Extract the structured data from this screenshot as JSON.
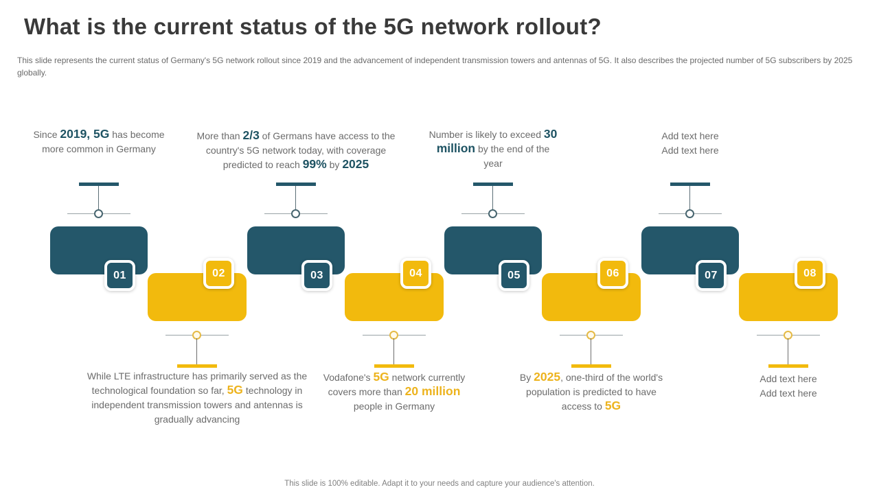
{
  "slide": {
    "title": "What is the current status of the 5G network rollout?",
    "subtitle": "This slide represents the current status of Germany's 5G network rollout since 2019 and the advancement of independent transmission towers and antennas of 5G. It also describes the projected number of 5G subscribers by 2025 globally.",
    "footer": "This slide is 100% editable. Adapt it to your needs and capture your audience's attention."
  },
  "colors": {
    "teal": "#24576A",
    "yellow": "#F2BA0D",
    "teal_highlight_text": "#1E5363",
    "yellow_highlight_text": "#EDB31D",
    "body_text_grey": "#6b6b6b",
    "title_grey": "#3a3a3a"
  },
  "steps": [
    {
      "number": "01",
      "variant": "teal",
      "caption": [
        {
          "t": "Since ",
          "b": false
        },
        {
          "t": "2019, 5G",
          "b": true
        },
        {
          "t": " has become more common in Germany",
          "b": false
        }
      ]
    },
    {
      "number": "02",
      "variant": "yellow",
      "caption": [
        {
          "t": "While LTE infrastructure has primarily served as the technological foundation so far, ",
          "b": false
        },
        {
          "t": "5G",
          "b": true
        },
        {
          "t": " technology in independent transmission towers and antennas is gradually advancing",
          "b": false
        }
      ]
    },
    {
      "number": "03",
      "variant": "teal",
      "caption": [
        {
          "t": "More than ",
          "b": false
        },
        {
          "t": "2/3",
          "b": true
        },
        {
          "t": " of Germans have access to the country's 5G network today, with coverage predicted to reach ",
          "b": false
        },
        {
          "t": "99%",
          "b": true
        },
        {
          "t": " by ",
          "b": false
        },
        {
          "t": "2025",
          "b": true
        }
      ]
    },
    {
      "number": "04",
      "variant": "yellow",
      "caption": [
        {
          "t": "Vodafone's ",
          "b": false
        },
        {
          "t": "5G",
          "b": true
        },
        {
          "t": " network currently covers more than ",
          "b": false
        },
        {
          "t": "20 million",
          "b": true
        },
        {
          "t": " people in Germany",
          "b": false
        }
      ]
    },
    {
      "number": "05",
      "variant": "teal",
      "caption": [
        {
          "t": "Number is likely to exceed ",
          "b": false
        },
        {
          "t": "30 million",
          "b": true
        },
        {
          "t": " by the end of the year",
          "b": false
        }
      ]
    },
    {
      "number": "06",
      "variant": "yellow",
      "caption": [
        {
          "t": "By ",
          "b": false
        },
        {
          "t": "2025",
          "b": true
        },
        {
          "t": ", one-third of the world's population is predicted to have access to ",
          "b": false
        },
        {
          "t": "5G",
          "b": true
        }
      ]
    },
    {
      "number": "07",
      "variant": "teal",
      "caption": [
        {
          "t": "Add text here\nAdd text here",
          "b": false
        }
      ]
    },
    {
      "number": "08",
      "variant": "yellow",
      "caption": [
        {
          "t": "Add text here\nAdd text here",
          "b": false
        }
      ]
    }
  ]
}
